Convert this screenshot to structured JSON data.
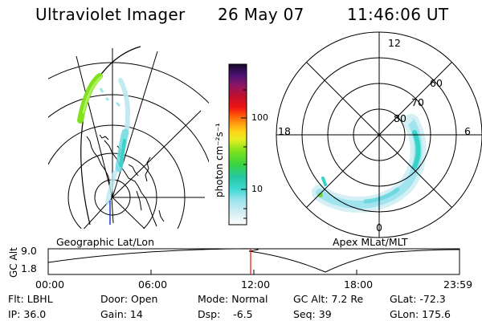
{
  "header": {
    "instrument": "Ultraviolet Imager",
    "date": "26 May 07",
    "time": "11:46:06 UT"
  },
  "colorbar": {
    "unit_label": "photon cm⁻²s⁻¹",
    "ticks": [
      "100",
      "10"
    ]
  },
  "geo_panel": {
    "label": "Geographic Lat/Lon"
  },
  "apex_panel": {
    "label": "Apex MLat/MLT",
    "mlt_labels": [
      "12",
      "6",
      "0",
      "18"
    ],
    "mlat_labels": [
      "60",
      "70",
      "80"
    ]
  },
  "altitude_plot": {
    "ylabel": "GC Alt",
    "yticks": [
      "9.0",
      "1.8"
    ],
    "xticks": [
      "00:00",
      "06:00",
      "12:00",
      "18:00",
      "23:59"
    ]
  },
  "status": {
    "flt": "Flt: LBHL",
    "ip": "IP: 36.0",
    "door": "Door: Open",
    "gain": "Gain: 14",
    "mode": "Mode: Normal",
    "dsp": "Dsp:    -6.5",
    "gcalt": "GC Alt: 7.2 Re",
    "seq": "Seq: 39",
    "glat": "GLat: -72.3",
    "glon": "GLon: 175.6"
  },
  "colors": {
    "marker": "#ff0000",
    "aurora_low": "#9fe4ef",
    "aurora_mid": "#37d3c8",
    "aurora_high": "#6ddc3a"
  }
}
